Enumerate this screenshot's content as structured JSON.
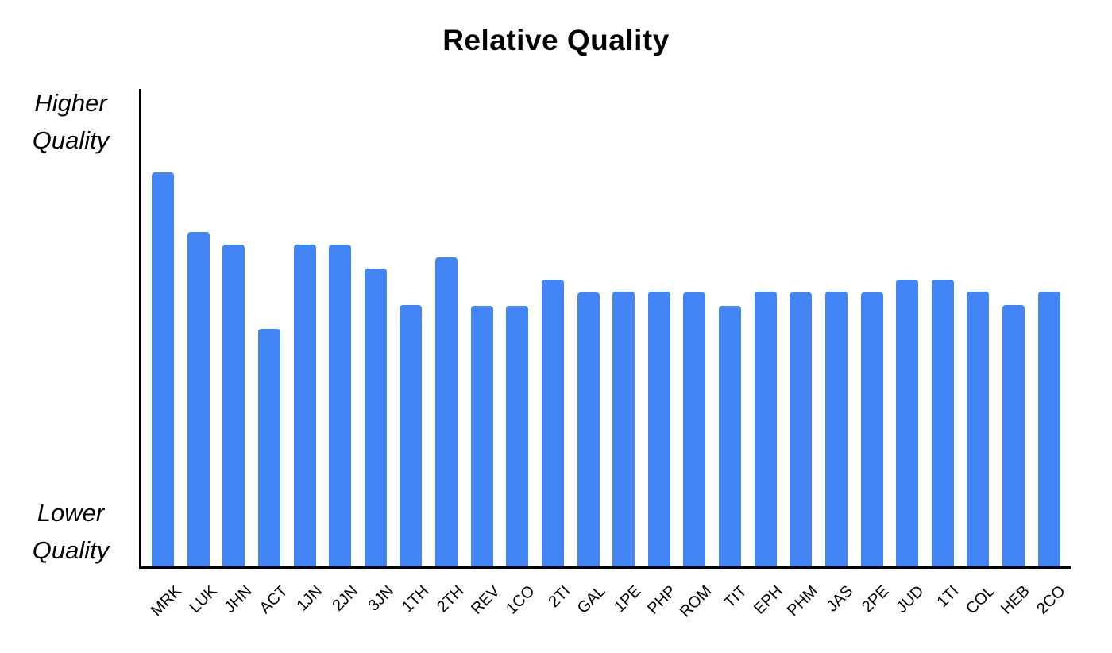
{
  "title": "Relative Quality",
  "y_axis": {
    "top_label": [
      "Higher",
      "Quality"
    ],
    "bottom_label": [
      "Lower",
      "Quality"
    ]
  },
  "colors": {
    "bar": "#4385f4",
    "axis": "#000000",
    "background": "#ffffff",
    "text": "#000000"
  },
  "chart_data": {
    "type": "bar",
    "title": "Relative Quality",
    "xlabel": "",
    "ylabel": "",
    "y_axis_top_annotation": "Higher Quality",
    "y_axis_bottom_annotation": "Lower Quality",
    "ylim": [
      0,
      1
    ],
    "grid": false,
    "legend": false,
    "bar_color": "#4385f4",
    "note": "No numeric y-axis shown; values are relative heights (fraction of full axis height)",
    "categories": [
      "MRK",
      "LUK",
      "JHN",
      "ACT",
      "1JN",
      "2JN",
      "3JN",
      "1TH",
      "2TH",
      "REV",
      "1CO",
      "2TI",
      "GAL",
      "1PE",
      "PHP",
      "ROM",
      "TIT",
      "EPH",
      "PHM",
      "JAS",
      "2PE",
      "JUD",
      "1TI",
      "COL",
      "HEB",
      "2CO"
    ],
    "values": [
      0.826,
      0.7,
      0.674,
      0.498,
      0.674,
      0.674,
      0.624,
      0.548,
      0.647,
      0.546,
      0.546,
      0.601,
      0.574,
      0.576,
      0.576,
      0.574,
      0.546,
      0.576,
      0.574,
      0.576,
      0.574,
      0.601,
      0.601,
      0.576,
      0.548,
      0.576
    ]
  }
}
